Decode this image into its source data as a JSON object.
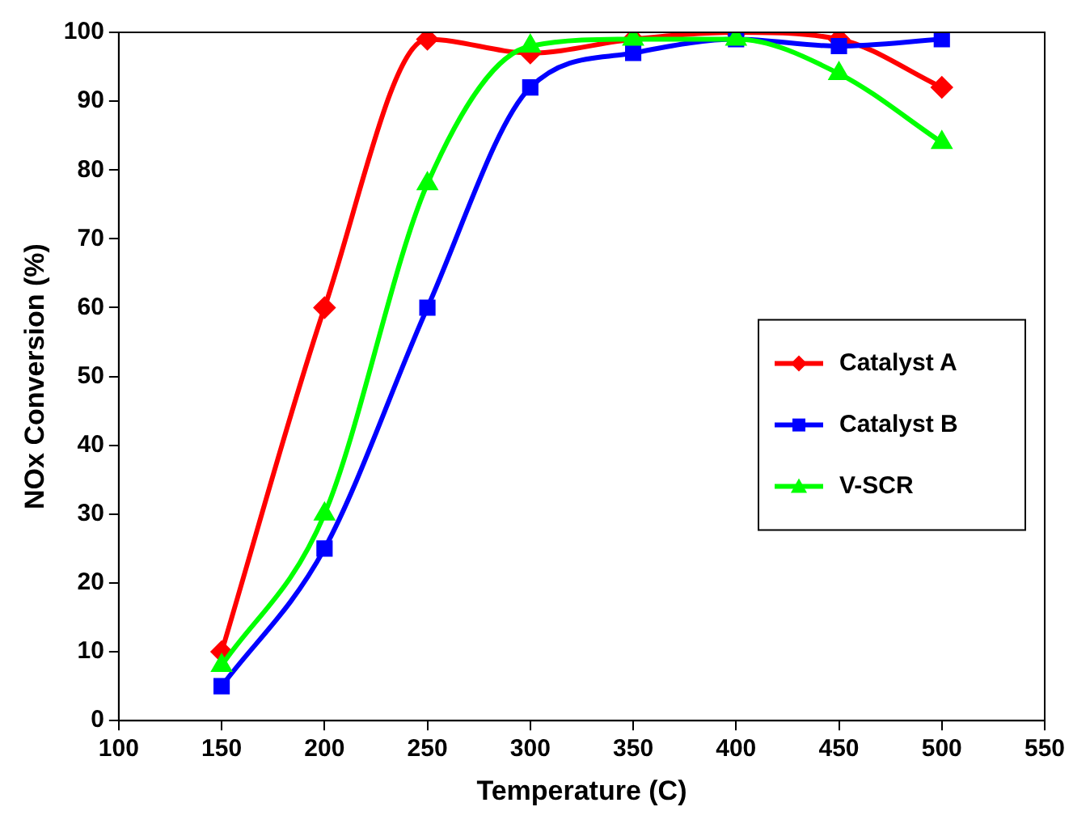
{
  "chart_data": {
    "type": "line",
    "xlabel": "Temperature (C)",
    "ylabel": "NOx Conversion (%)",
    "x": [
      150,
      200,
      250,
      300,
      350,
      400,
      450,
      500
    ],
    "xlim": [
      100,
      550
    ],
    "xticks": [
      100,
      150,
      200,
      250,
      300,
      350,
      400,
      450,
      500,
      550
    ],
    "ylim": [
      0,
      100
    ],
    "yticks": [
      0,
      10,
      20,
      30,
      40,
      50,
      60,
      70,
      80,
      90,
      100
    ],
    "grid": false,
    "legend": "right",
    "line_style": "solid",
    "series": [
      {
        "name": "Catalyst A",
        "color": "#ff0000",
        "marker": "diamond",
        "values": [
          10,
          60,
          99,
          97,
          99,
          100,
          99,
          92
        ]
      },
      {
        "name": "Catalyst B",
        "color": "#0000ff",
        "marker": "square",
        "values": [
          5,
          25,
          60,
          92,
          97,
          99,
          98,
          99
        ]
      },
      {
        "name": "V-SCR",
        "color": "#00ff00",
        "marker": "triangle",
        "values": [
          8,
          30,
          78,
          98,
          99,
          99,
          94,
          84
        ]
      }
    ]
  }
}
